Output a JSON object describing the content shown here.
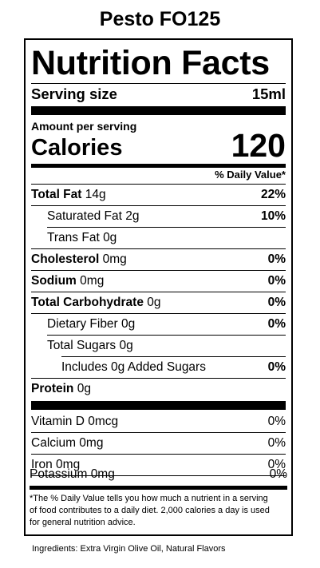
{
  "product_title": "Pesto FO125",
  "label": {
    "title": "Nutrition Facts",
    "serving_size_label": "Serving size",
    "serving_size_value": "15ml",
    "amount_per_serving": "Amount per serving",
    "calories_label": "Calories",
    "calories_value": "120",
    "daily_value_header": "% Daily Value*",
    "nutrients": [
      {
        "name": "Total Fat",
        "amount": "14g",
        "dv": "22%"
      },
      {
        "name": "Saturated Fat",
        "amount": "2g",
        "dv": "10%"
      },
      {
        "name": "Trans Fat",
        "amount": "0g",
        "dv": ""
      },
      {
        "name": "Cholesterol",
        "amount": "0mg",
        "dv": "0%"
      },
      {
        "name": "Sodium",
        "amount": "0mg",
        "dv": "0%"
      },
      {
        "name": "Total Carbohydrate",
        "amount": "0g",
        "dv": "0%"
      },
      {
        "name": "Dietary Fiber",
        "amount": "0g",
        "dv": "0%"
      },
      {
        "name": "Total Sugars",
        "amount": "0g",
        "dv": ""
      },
      {
        "name": "Includes 0g Added Sugars",
        "amount": "",
        "dv": "0%"
      },
      {
        "name": "Protein",
        "amount": "0g",
        "dv": ""
      }
    ],
    "vitamins": [
      {
        "name": "Vitamin D",
        "amount": "0mcg",
        "dv": "0%"
      },
      {
        "name": "Calcium",
        "amount": "0mg",
        "dv": "0%"
      },
      {
        "name": "Iron",
        "amount": "0mg",
        "dv": "0%"
      },
      {
        "name": "Potassium",
        "amount": "0mg",
        "dv": "0%"
      }
    ],
    "footnote": "*The % Daily Value tells you how much a nutrient in a serving of food contributes to a daily diet. 2,000 calories a day is used for general nutrition advice."
  },
  "ingredients": "Ingredients: Extra Virgin Olive Oil, Natural Flavors"
}
